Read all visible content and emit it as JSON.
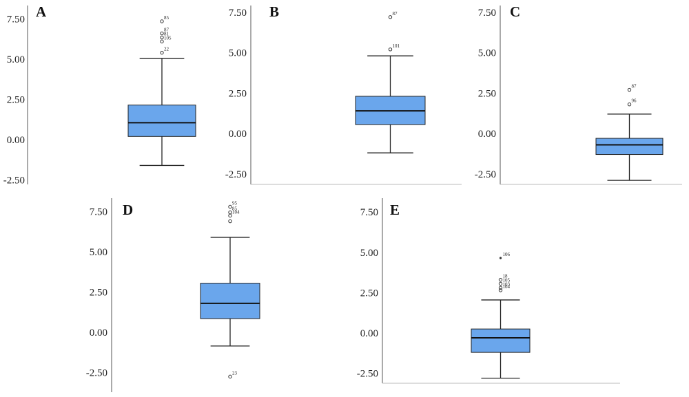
{
  "colors": {
    "box_fill": "#6aa6ec",
    "box_stroke": "#222222",
    "axis": "#555555",
    "outlier": "#333333",
    "text": "#222222"
  },
  "panels": [
    {
      "label": "A",
      "ticks": [
        "7.50",
        "5.00",
        "2.50",
        "0.00",
        "-2.50"
      ]
    },
    {
      "label": "B",
      "ticks": [
        "7.50",
        "5.00",
        "2.50",
        "0.00",
        "-2.50"
      ]
    },
    {
      "label": "C",
      "ticks": [
        "7.50",
        "5.00",
        "2.50",
        "0.00",
        "-2.50"
      ]
    },
    {
      "label": "D",
      "ticks": [
        "7.50",
        "5.00",
        "2.50",
        "0.00",
        "-2.50"
      ]
    },
    {
      "label": "E",
      "ticks": [
        "7.50",
        "5.00",
        "2.50",
        "0.00",
        "-2.50"
      ]
    }
  ],
  "chart_data": [
    {
      "type": "box",
      "panel": "A",
      "ylim": [
        -2.5,
        7.5
      ],
      "ticks": [
        7.5,
        5.0,
        2.5,
        0.0,
        -2.5
      ],
      "whisker_low": -1.6,
      "q1": 0.2,
      "median": 1.05,
      "q3": 2.15,
      "whisker_high": 5.05,
      "outliers": [
        {
          "value": 7.35,
          "label": "85"
        },
        {
          "value": 6.6,
          "label": "87"
        },
        {
          "value": 6.35,
          "label": "81"
        },
        {
          "value": 6.1,
          "label": "105"
        },
        {
          "value": 5.4,
          "label": "22"
        }
      ]
    },
    {
      "type": "box",
      "panel": "B",
      "ylim": [
        -2.5,
        7.5
      ],
      "ticks": [
        7.5,
        5.0,
        2.5,
        0.0,
        -2.5
      ],
      "whisker_low": -1.2,
      "q1": 0.55,
      "median": 1.4,
      "q3": 2.3,
      "whisker_high": 4.8,
      "outliers": [
        {
          "value": 7.2,
          "label": "87"
        },
        {
          "value": 5.2,
          "label": "101"
        }
      ]
    },
    {
      "type": "box",
      "panel": "C",
      "ylim": [
        -2.5,
        7.5
      ],
      "ticks": [
        7.5,
        5.0,
        2.5,
        0.0,
        -2.5
      ],
      "whisker_low": -2.9,
      "q1": -1.3,
      "median": -0.7,
      "q3": -0.3,
      "whisker_high": 1.2,
      "outliers": [
        {
          "value": 2.7,
          "label": "87"
        },
        {
          "value": 1.8,
          "label": "96"
        }
      ]
    },
    {
      "type": "box",
      "panel": "D",
      "ylim": [
        -2.5,
        7.5
      ],
      "ticks": [
        7.5,
        5.0,
        2.5,
        0.0,
        -2.5
      ],
      "whisker_low": -0.85,
      "q1": 0.85,
      "median": 1.8,
      "q3": 3.05,
      "whisker_high": 5.9,
      "outliers": [
        {
          "value": 7.8,
          "label": "95"
        },
        {
          "value": 7.45,
          "label": "85"
        },
        {
          "value": 7.25,
          "label": "104"
        },
        {
          "value": 6.9,
          "label": ""
        },
        {
          "value": -2.75,
          "label": "23"
        }
      ]
    },
    {
      "type": "box",
      "panel": "E",
      "ylim": [
        -2.5,
        7.5
      ],
      "ticks": [
        7.5,
        5.0,
        2.5,
        0.0,
        -2.5
      ],
      "whisker_low": -2.8,
      "q1": -1.2,
      "median": -0.3,
      "q3": 0.25,
      "whisker_high": 2.05,
      "outliers": [
        {
          "value": 4.65,
          "label": "106",
          "extreme": true
        },
        {
          "value": 3.3,
          "label": "18"
        },
        {
          "value": 3.05,
          "label": "105"
        },
        {
          "value": 2.8,
          "label": "103"
        },
        {
          "value": 2.65,
          "label": "104"
        }
      ]
    }
  ]
}
